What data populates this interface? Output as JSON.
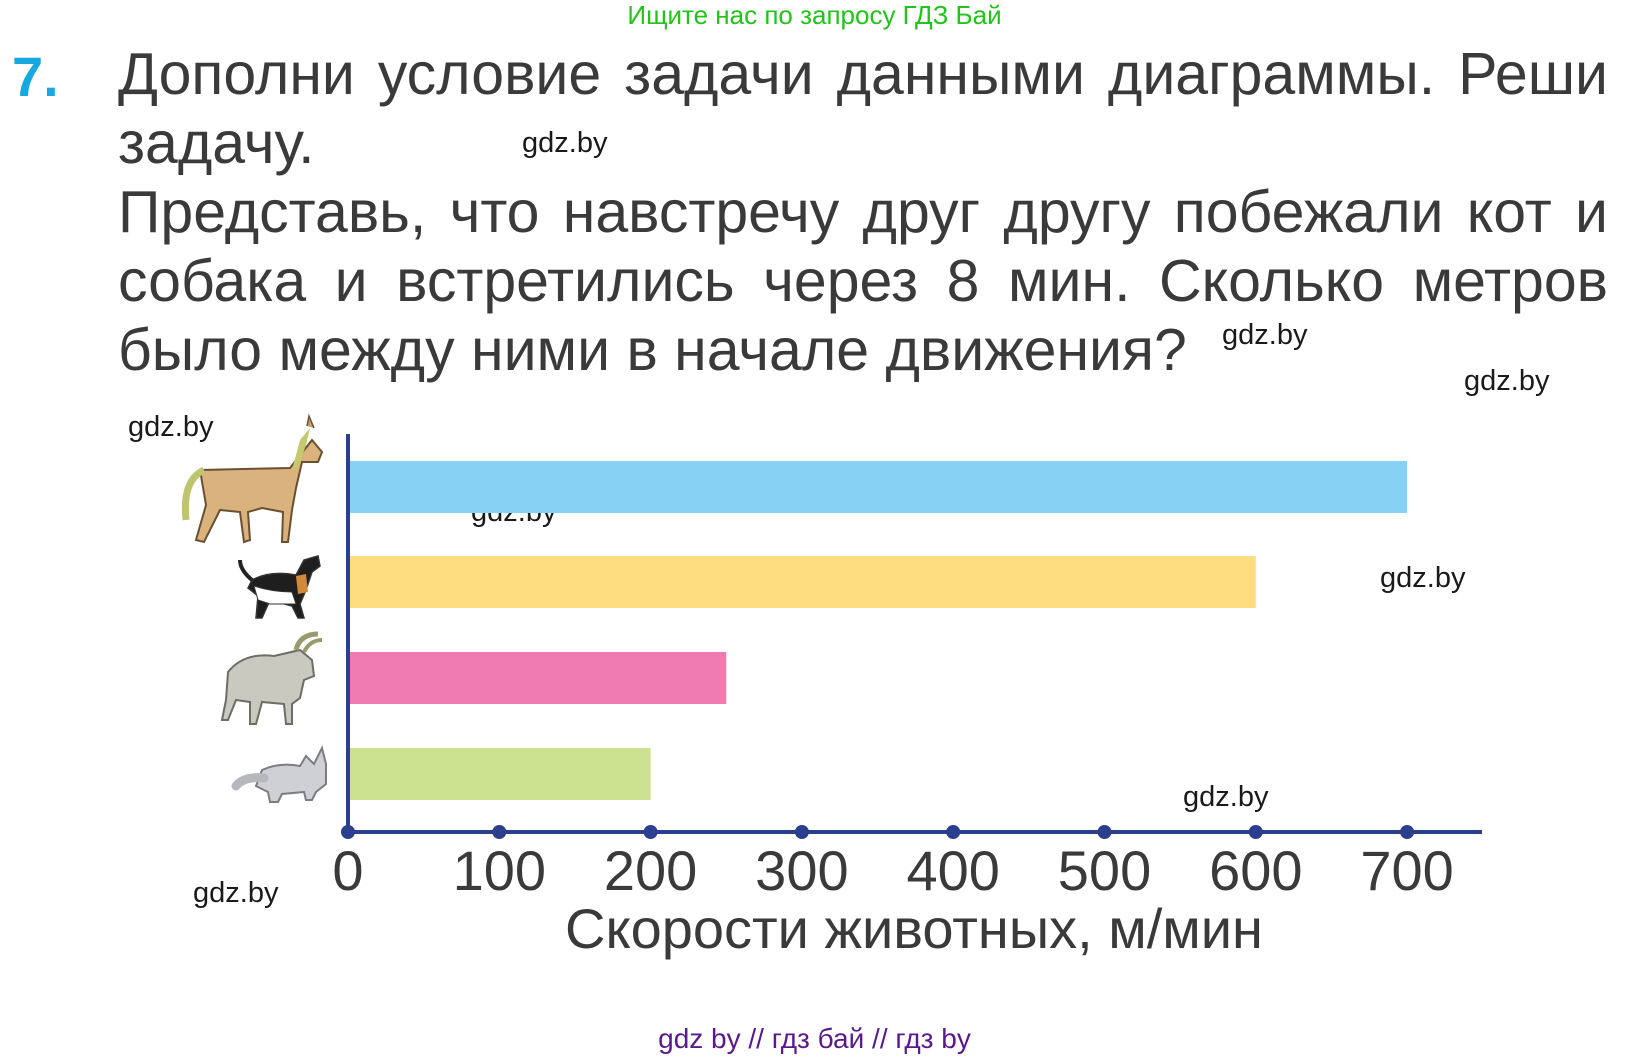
{
  "banner": {
    "text": "Ищите нас по запросу ГДЗ Бай",
    "color": "#22c31a"
  },
  "task": {
    "number": "7.",
    "number_color": "#18a8e0",
    "line1": "Дополни условие задачи данными диаграммы. Реши",
    "line2": "задачу.",
    "paragraph": "Представь, что навстречу друг другу побежали кот и собака и встретились через 8 мин. Сколько метров было между ними в начале движения?"
  },
  "watermarks": [
    "gdz.by",
    "gdz.by",
    "gdz.by",
    "gdz.by",
    "gdz.by",
    "gdz.by",
    "gdz.by",
    "gdz.by",
    "gdz.by"
  ],
  "footer": {
    "text": "gdz by  //  гдз бай  //  гдз by",
    "color": "#5a1a8c"
  },
  "chart_data": {
    "type": "bar",
    "orientation": "horizontal",
    "categories": [
      "horse-icon",
      "dog-icon",
      "goat-icon",
      "cat-icon"
    ],
    "values": [
      700,
      600,
      250,
      200
    ],
    "bar_colors": [
      "#87d1f5",
      "#fedd80",
      "#f07bb0",
      "#cde290"
    ],
    "xlabel": "Скорости животных, м/мин",
    "xlim": [
      0,
      750
    ],
    "xticks": [
      0,
      100,
      200,
      300,
      400,
      500,
      600,
      700
    ],
    "axis_color": "#2c3f8f",
    "grid": false
  }
}
